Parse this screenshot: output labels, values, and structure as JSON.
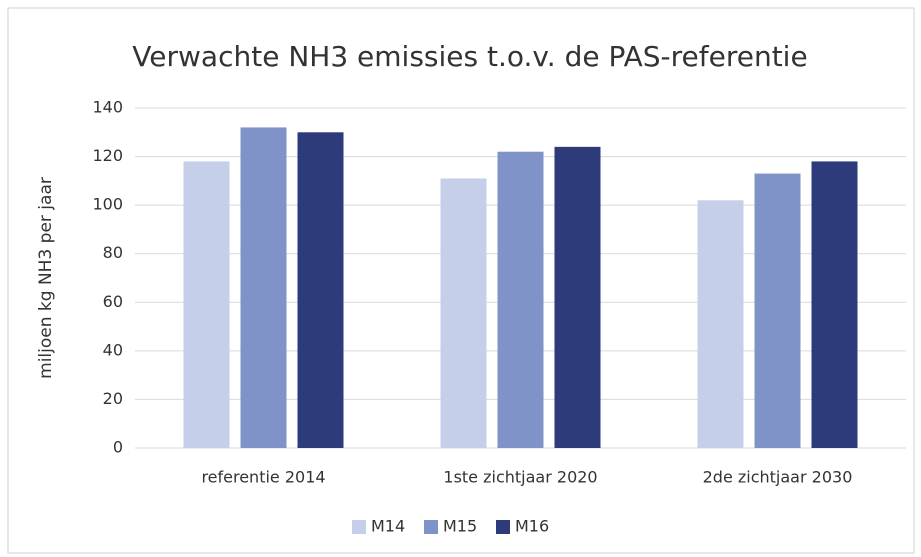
{
  "chart_data": {
    "type": "bar",
    "title": "Verwachte NH3 emissies t.o.v. de PAS-referentie",
    "y_label": "miljoen kg NH3 per jaar",
    "categories": [
      "referentie 2014",
      "1ste zichtjaar 2020",
      "2de zichtjaar 2030"
    ],
    "series": [
      {
        "name": "M14",
        "color": "#c5cfea",
        "values": [
          118,
          111,
          102
        ]
      },
      {
        "name": "M15",
        "color": "#7f93c8",
        "values": [
          132,
          122,
          113
        ]
      },
      {
        "name": "M16",
        "color": "#2e3b7a",
        "values": [
          130,
          124,
          118
        ]
      }
    ],
    "ylim": [
      0,
      140
    ],
    "yticks": [
      0,
      20,
      40,
      60,
      80,
      100,
      120,
      140
    ],
    "grid": true,
    "legend": "bottom"
  }
}
